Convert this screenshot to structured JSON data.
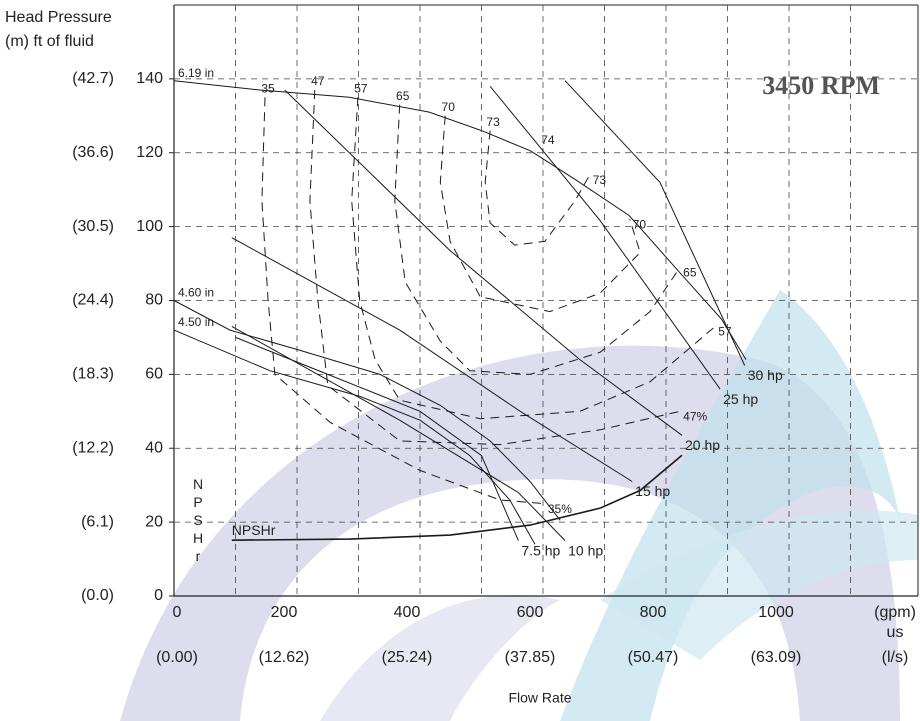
{
  "chart_data": {
    "type": "line",
    "title": "3450 RPM",
    "y_label": [
      "Head Pressure",
      "(m) ft of fluid"
    ],
    "x_label": "Flow Rate",
    "x_unit": "(gpm)",
    "x_unit_sub": "us",
    "x_metric_unit": "(l/s)",
    "npsh_axis_label": "NPSHr",
    "xlim": [
      0,
      1200
    ],
    "ylim": [
      0,
      160
    ],
    "xticks": [
      0,
      200,
      400,
      600,
      800,
      1000
    ],
    "x_metric_labels": [
      "(0.00)",
      "(12.62)",
      "(25.24)",
      "(37.85)",
      "(50.47)",
      "(63.09)"
    ],
    "xgrid": [
      100,
      200,
      300,
      400,
      500,
      600,
      700,
      800,
      900,
      1000,
      1100
    ],
    "yticks": [
      0,
      20,
      40,
      60,
      80,
      100,
      120,
      140
    ],
    "y_metric_labels": [
      "(0.0)",
      "(6.1)",
      "(12.2)",
      "(18.3)",
      "(24.4)",
      "(30.5)",
      "(36.6)",
      "(42.7)"
    ],
    "grid": true,
    "line_color": "#1a1a1a",
    "series": [
      {
        "name": "6.19 in",
        "style": "solid",
        "label_at": "start",
        "x": [
          0,
          140,
          285,
          415,
          500,
          580,
          650,
          740,
          820,
          890,
          930
        ],
        "values": [
          139.5,
          137,
          135,
          131,
          126,
          120.5,
          113,
          103,
          88,
          75,
          64
        ]
      },
      {
        "name": "4.60 in",
        "style": "solid",
        "label_at": "start",
        "x": [
          0,
          91,
          205,
          335,
          433,
          514,
          579,
          628
        ],
        "values": [
          80,
          72,
          66.5,
          60,
          51.6,
          42,
          31,
          20.5
        ]
      },
      {
        "name": "4.50 in",
        "style": "solid",
        "label_at": "start",
        "x": [
          0,
          156,
          303,
          400,
          481,
          546,
          587
        ],
        "values": [
          72,
          61,
          54,
          47.6,
          38,
          26,
          14
        ]
      },
      {
        "name": "30 hp",
        "style": "solid",
        "label_at": "end",
        "x": [
          636,
          790,
          928
        ],
        "values": [
          139.5,
          112,
          62.4
        ]
      },
      {
        "name": "25 hp",
        "style": "solid",
        "label_at": "end",
        "x": [
          514,
          693,
          888
        ],
        "values": [
          138,
          101.6,
          56
        ]
      },
      {
        "name": "20 hp",
        "style": "solid",
        "label_at": "end",
        "x": [
          180,
          449,
          660,
          826
        ],
        "values": [
          137,
          93.5,
          64,
          43.5
        ]
      },
      {
        "name": "15 hp",
        "style": "solid",
        "label_at": "end",
        "x": [
          94,
          367,
          563,
          745
        ],
        "values": [
          97,
          72,
          50,
          31
        ]
      },
      {
        "name": "10 hp",
        "style": "solid",
        "label_at": "end",
        "x": [
          94,
          367,
          560,
          636
        ],
        "values": [
          73,
          47.6,
          28,
          15
        ]
      },
      {
        "name": "7.5 hp",
        "style": "solid",
        "label_at": "end",
        "x": [
          100,
          250,
          400,
          500,
          560
        ],
        "values": [
          70,
          60,
          50,
          38,
          15
        ]
      },
      {
        "name": "35",
        "end_label": "35%",
        "style": "dashed",
        "label_at": "start",
        "x": [
          148,
          143,
          153,
          164,
          254,
          400,
          530,
          603
        ],
        "values": [
          135,
          107,
          80,
          60,
          47,
          34,
          26,
          25
        ]
      },
      {
        "name": "47",
        "end_label": "47%",
        "style": "dashed",
        "label_at": "start",
        "x": [
          229,
          221,
          234,
          250,
          367,
          530,
          693,
          823
        ],
        "values": [
          137,
          107,
          80,
          57,
          42,
          41,
          45,
          50
        ]
      },
      {
        "name": "57",
        "end_label": "57",
        "style": "dashed",
        "label_at": "start",
        "x": [
          299,
          289,
          302,
          327,
          367,
          498,
          660,
          774,
          880
        ],
        "values": [
          135,
          107,
          80,
          64,
          53,
          48,
          50,
          58,
          73
        ]
      },
      {
        "name": "65",
        "end_label": "65",
        "style": "dashed",
        "label_at": "start",
        "x": [
          367,
          359,
          376,
          433,
          481,
          579,
          693,
          774,
          823
        ],
        "values": [
          133,
          107,
          85,
          69,
          61,
          60,
          66,
          77,
          89
        ]
      },
      {
        "name": "70",
        "end_label": "70",
        "style": "dashed",
        "label_at": "start",
        "x": [
          441,
          433,
          449,
          498,
          611,
          693,
          758,
          741
        ],
        "values": [
          130,
          112,
          96,
          81,
          77,
          82,
          93,
          102
        ]
      },
      {
        "name": "73",
        "end_label": "73",
        "style": "dashed",
        "label_at": "start",
        "x": [
          514,
          506,
          514,
          554,
          603,
          652,
          676
        ],
        "values": [
          126,
          112,
          101,
          95,
          96,
          107,
          114
        ]
      },
      {
        "name": "74",
        "style": "point",
        "label_at": "start",
        "x": [
          603
        ],
        "values": [
          121
        ]
      },
      {
        "name": "NPSHr",
        "style": "bold",
        "label_at": "start",
        "x": [
          94,
          286,
          449,
          579,
          693,
          758,
          826
        ],
        "values": [
          15.1,
          15.4,
          16.5,
          19.2,
          23.8,
          28.6,
          38.1
        ]
      }
    ]
  }
}
